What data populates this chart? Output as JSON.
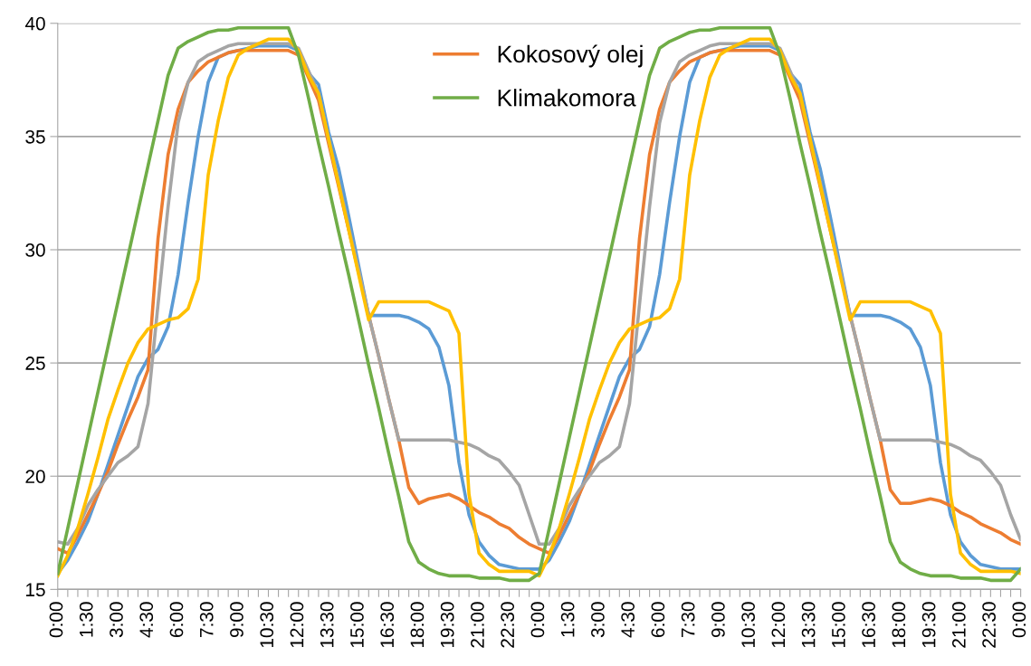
{
  "chart_data": {
    "type": "line",
    "categories": [
      "0:00",
      null,
      null,
      "1:30",
      null,
      null,
      "3:00",
      null,
      null,
      "4:30",
      null,
      null,
      "6:00",
      null,
      null,
      "7:30",
      null,
      null,
      "9:00",
      null,
      null,
      "10:30",
      null,
      null,
      "12:00",
      null,
      null,
      "13:30",
      null,
      null,
      "15:00",
      null,
      null,
      "16:30",
      null,
      null,
      "18:00",
      null,
      null,
      "19:30",
      null,
      null,
      "21:00",
      null,
      null,
      "22:30",
      null,
      null,
      "0:00",
      null,
      null,
      "1:30",
      null,
      null,
      "3:00",
      null,
      null,
      "4:30",
      null,
      null,
      "6:00",
      null,
      null,
      "7:30",
      null,
      null,
      "9:00",
      null,
      null,
      "10:30",
      null,
      null,
      "12:00",
      null,
      null,
      "13:30",
      null,
      null,
      "15:00",
      null,
      null,
      "16:30",
      null,
      null,
      "18:00",
      null,
      null,
      "19:30",
      null,
      null,
      "21:00",
      null,
      null,
      "22:30",
      null,
      null,
      "0:00"
    ],
    "ylim": [
      15,
      40
    ],
    "yticks": [
      15,
      20,
      25,
      30,
      35,
      40
    ],
    "grid": "y",
    "legend": "top",
    "marker": "none",
    "line_style": "solid",
    "series": [
      {
        "color": "#5b9bd5",
        "values": [
          15.7,
          16.3,
          17.1,
          18.0,
          19.2,
          20.5,
          21.8,
          23.1,
          24.4,
          25.2,
          25.6,
          26.6,
          28.9,
          32.1,
          35.0,
          37.4,
          38.5,
          38.7,
          38.8,
          38.9,
          39.0,
          39.0,
          39.0,
          39.0,
          38.8,
          37.8,
          37.3,
          35.2,
          33.6,
          31.5,
          29.3,
          27.1,
          27.1,
          27.1,
          27.1,
          27.0,
          26.8,
          26.5,
          25.7,
          24.0,
          20.6,
          18.3,
          17.1,
          16.5,
          16.1,
          16.0,
          15.9,
          15.9,
          15.9,
          16.3,
          17.1,
          18.0,
          19.2,
          20.5,
          21.8,
          23.1,
          24.4,
          25.2,
          25.6,
          26.6,
          28.9,
          32.1,
          35.0,
          37.4,
          38.5,
          38.7,
          38.8,
          38.9,
          39.0,
          39.0,
          39.0,
          39.0,
          38.8,
          37.8,
          37.3,
          35.2,
          33.6,
          31.5,
          29.3,
          27.1,
          27.1,
          27.1,
          27.1,
          27.0,
          26.8,
          26.5,
          25.7,
          24.0,
          20.6,
          18.3,
          17.1,
          16.5,
          16.1,
          16.0,
          15.9,
          15.9,
          15.9
        ]
      },
      {
        "name": "Kokosový olej",
        "color": "#ed7d31",
        "values": [
          16.8,
          16.6,
          17.4,
          18.3,
          19.2,
          20.2,
          21.4,
          22.5,
          23.5,
          24.7,
          30.5,
          34.2,
          36.2,
          37.4,
          37.9,
          38.3,
          38.5,
          38.7,
          38.8,
          38.8,
          38.8,
          38.8,
          38.8,
          38.8,
          38.6,
          37.6,
          36.6,
          34.7,
          32.8,
          30.9,
          29.0,
          27.1,
          25.3,
          23.4,
          21.6,
          19.5,
          18.8,
          19.0,
          19.1,
          19.2,
          19.0,
          18.7,
          18.4,
          18.2,
          17.9,
          17.7,
          17.3,
          17.0,
          16.8,
          16.6,
          17.4,
          18.3,
          19.2,
          20.2,
          21.4,
          22.5,
          23.5,
          24.7,
          30.5,
          34.2,
          36.2,
          37.4,
          37.9,
          38.3,
          38.5,
          38.7,
          38.8,
          38.8,
          38.8,
          38.8,
          38.8,
          38.8,
          38.6,
          37.6,
          36.6,
          34.7,
          32.8,
          30.9,
          29.0,
          27.1,
          25.3,
          23.4,
          21.6,
          19.4,
          18.8,
          18.8,
          18.9,
          19.0,
          18.9,
          18.7,
          18.4,
          18.2,
          17.9,
          17.7,
          17.5,
          17.2,
          17.0
        ]
      },
      {
        "color": "#a5a5a5",
        "values": [
          17.1,
          17.0,
          17.7,
          18.7,
          19.4,
          20.0,
          20.6,
          20.9,
          21.3,
          23.2,
          27.6,
          31.9,
          35.6,
          37.4,
          38.3,
          38.6,
          38.8,
          39.0,
          39.1,
          39.1,
          39.1,
          39.1,
          39.1,
          39.1,
          38.9,
          37.9,
          36.9,
          34.9,
          33.0,
          31.0,
          29.1,
          27.1,
          25.3,
          23.4,
          21.6,
          21.6,
          21.6,
          21.6,
          21.6,
          21.6,
          21.5,
          21.4,
          21.2,
          20.9,
          20.7,
          20.2,
          19.6,
          18.3,
          17.0,
          17.0,
          17.7,
          18.7,
          19.4,
          20.0,
          20.6,
          20.9,
          21.3,
          23.2,
          27.6,
          31.9,
          35.6,
          37.4,
          38.3,
          38.6,
          38.8,
          39.0,
          39.1,
          39.1,
          39.1,
          39.1,
          39.1,
          39.1,
          38.9,
          37.9,
          36.9,
          34.9,
          33.0,
          31.0,
          29.1,
          27.1,
          25.3,
          23.4,
          21.6,
          21.6,
          21.6,
          21.6,
          21.6,
          21.6,
          21.5,
          21.4,
          21.2,
          20.9,
          20.7,
          20.2,
          19.6,
          18.3,
          17.2
        ]
      },
      {
        "color": "#ffc000",
        "values": [
          15.6,
          16.5,
          17.7,
          19.2,
          20.8,
          22.5,
          23.8,
          25.0,
          25.9,
          26.5,
          26.7,
          26.9,
          27.0,
          27.4,
          28.7,
          33.3,
          35.7,
          37.6,
          38.6,
          38.9,
          39.1,
          39.3,
          39.3,
          39.3,
          38.8,
          37.7,
          36.9,
          34.9,
          32.9,
          30.9,
          28.9,
          26.9,
          27.7,
          27.7,
          27.7,
          27.7,
          27.7,
          27.7,
          27.5,
          27.3,
          26.3,
          19.2,
          16.6,
          16.1,
          15.8,
          15.8,
          15.8,
          15.8,
          15.6,
          16.5,
          17.7,
          19.2,
          20.8,
          22.5,
          23.8,
          25.0,
          25.9,
          26.5,
          26.7,
          26.9,
          27.0,
          27.4,
          28.7,
          33.3,
          35.7,
          37.6,
          38.6,
          38.9,
          39.1,
          39.3,
          39.3,
          39.3,
          38.8,
          37.7,
          36.9,
          34.9,
          32.9,
          30.9,
          28.9,
          26.9,
          27.7,
          27.7,
          27.7,
          27.7,
          27.7,
          27.7,
          27.5,
          27.3,
          26.3,
          19.2,
          16.6,
          16.1,
          15.8,
          15.8,
          15.8,
          15.8,
          15.7
        ]
      },
      {
        "name": "Klimakomora",
        "color": "#70ad47",
        "values": [
          15.7,
          17.7,
          19.7,
          21.7,
          23.7,
          25.7,
          27.7,
          29.7,
          31.7,
          33.7,
          35.7,
          37.7,
          38.9,
          39.2,
          39.4,
          39.6,
          39.7,
          39.7,
          39.8,
          39.8,
          39.8,
          39.8,
          39.8,
          39.8,
          38.6,
          36.7,
          34.7,
          32.8,
          30.8,
          28.9,
          26.9,
          24.9,
          23.0,
          21.0,
          19.1,
          17.1,
          16.2,
          15.9,
          15.7,
          15.6,
          15.6,
          15.6,
          15.5,
          15.5,
          15.5,
          15.4,
          15.4,
          15.4,
          15.7,
          17.7,
          19.7,
          21.7,
          23.7,
          25.7,
          27.7,
          29.7,
          31.7,
          33.7,
          35.7,
          37.7,
          38.9,
          39.2,
          39.4,
          39.6,
          39.7,
          39.7,
          39.8,
          39.8,
          39.8,
          39.8,
          39.8,
          39.8,
          38.6,
          36.7,
          34.7,
          32.8,
          30.8,
          28.9,
          26.9,
          24.9,
          23.0,
          21.0,
          19.1,
          17.1,
          16.2,
          15.9,
          15.7,
          15.6,
          15.6,
          15.6,
          15.5,
          15.5,
          15.5,
          15.4,
          15.4,
          15.4,
          15.9
        ]
      }
    ]
  }
}
